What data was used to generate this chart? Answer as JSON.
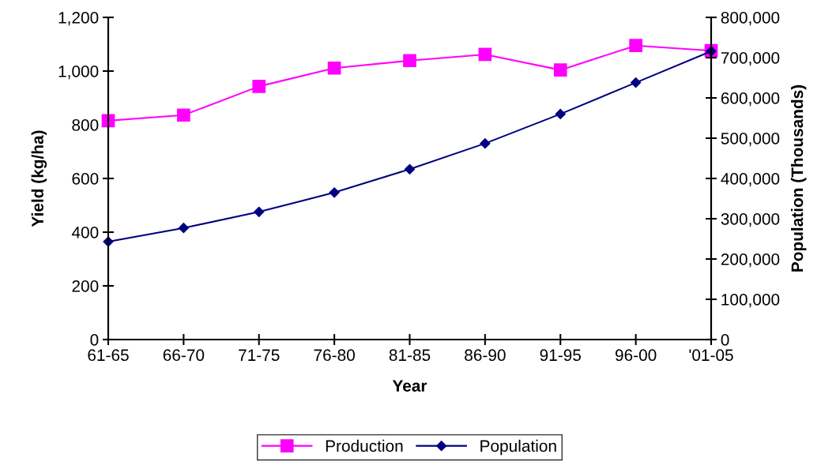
{
  "chart_data": {
    "type": "line",
    "xlabel": "Year",
    "ylabel": "Yield (kg/ha)",
    "y2label": "Population (Thousands)",
    "categories": [
      "61-65",
      "66-70",
      "71-75",
      "76-80",
      "81-85",
      "86-90",
      "91-95",
      "96-00",
      "'01-05"
    ],
    "series": [
      {
        "name": "Production",
        "color": "#ff00ff",
        "marker": "square",
        "values": [
          815,
          836,
          943,
          1011,
          1039,
          1062,
          1004,
          1095,
          1076
        ]
      },
      {
        "name": "Population",
        "color": "#000080",
        "marker": "diamond",
        "axis": "y2",
        "values": [
          243000,
          277000,
          317000,
          365000,
          423000,
          487000,
          560000,
          638000,
          716000
        ]
      }
    ],
    "ylim": [
      0,
      1200
    ],
    "yticks": [
      {
        "value": 0,
        "label": "0"
      },
      {
        "value": 200,
        "label": "200"
      },
      {
        "value": 400,
        "label": "400"
      },
      {
        "value": 600,
        "label": "600"
      },
      {
        "value": 800,
        "label": "800"
      },
      {
        "value": 1000,
        "label": "1,000"
      },
      {
        "value": 1200,
        "label": "1,200"
      }
    ],
    "y2lim": [
      0,
      800000
    ],
    "y2ticks": [
      {
        "value": 0,
        "label": "0"
      },
      {
        "value": 100000,
        "label": "100,000"
      },
      {
        "value": 200000,
        "label": "200,000"
      },
      {
        "value": 300000,
        "label": "300,000"
      },
      {
        "value": 400000,
        "label": "400,000"
      },
      {
        "value": 500000,
        "label": "500,000"
      },
      {
        "value": 600000,
        "label": "600,000"
      },
      {
        "value": 700000,
        "label": "700,000"
      },
      {
        "value": 800000,
        "label": "800,000"
      }
    ],
    "grid": false,
    "legend": "bottom",
    "line_style": "solid"
  }
}
